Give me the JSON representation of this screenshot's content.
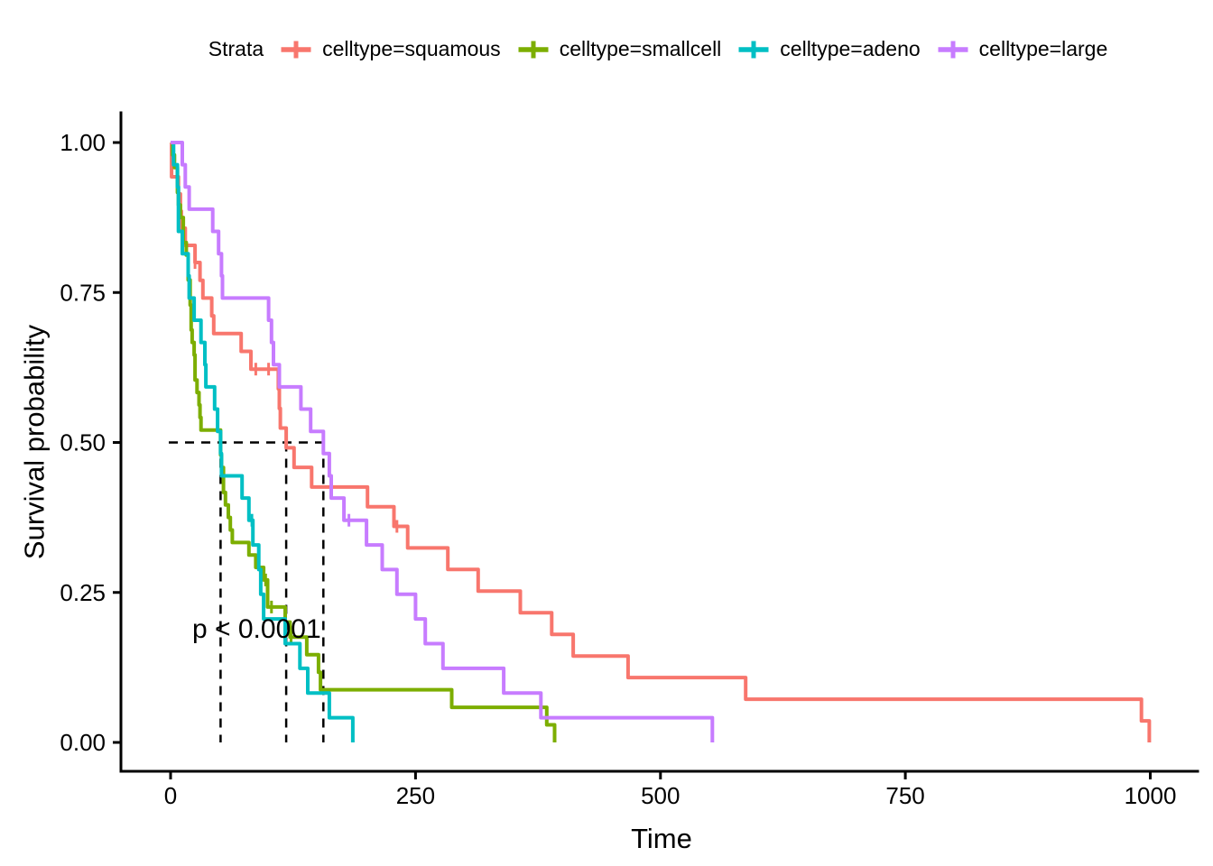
{
  "legend": {
    "title": "Strata",
    "items": [
      {
        "name": "squamous",
        "label": "celltype=squamous",
        "color": "#F8766D"
      },
      {
        "name": "smallcell",
        "label": "celltype=smallcell",
        "color": "#7CAE00"
      },
      {
        "name": "adeno",
        "label": "celltype=adeno",
        "color": "#00BFC4"
      },
      {
        "name": "large",
        "label": "celltype=large",
        "color": "#C77CFF"
      }
    ]
  },
  "axes": {
    "x": {
      "label": "Time",
      "ticks": [
        "0",
        "250",
        "500",
        "750",
        "1000"
      ],
      "range": [
        0,
        1000
      ]
    },
    "y": {
      "label": "Survival probability",
      "ticks": [
        "1.00",
        "0.75",
        "0.50",
        "0.25",
        "0.00"
      ],
      "range": [
        0,
        1
      ]
    }
  },
  "annotations": {
    "pvalue": "p < 0.0001"
  },
  "chart_data": {
    "type": "line",
    "subtype": "kaplan-meier-step",
    "title": "",
    "xlabel": "Time",
    "ylabel": "Survival probability",
    "xlim": [
      0,
      1000
    ],
    "ylim": [
      0,
      1
    ],
    "grid": false,
    "legend_position": "top",
    "median_line_y": 0.5,
    "median_survival_times": {
      "squamous": 118,
      "smallcell": 51,
      "adeno": 51,
      "large": 156
    },
    "series": [
      {
        "name": "squamous",
        "label": "celltype=squamous",
        "color": "#F8766D",
        "steps": [
          [
            1,
            0.9429
          ],
          [
            8,
            0.9143
          ],
          [
            10,
            0.8857
          ],
          [
            11,
            0.8571
          ],
          [
            15,
            0.8286
          ],
          [
            25,
            0.8
          ],
          [
            30,
            0.7704
          ],
          [
            33,
            0.7407
          ],
          [
            42,
            0.7111
          ],
          [
            44,
            0.6815
          ],
          [
            72,
            0.6519
          ],
          [
            82,
            0.6222
          ],
          [
            110,
            0.5895
          ],
          [
            111,
            0.5567
          ],
          [
            112,
            0.524
          ],
          [
            118,
            0.4912
          ],
          [
            126,
            0.4585
          ],
          [
            144,
            0.4257
          ],
          [
            201,
            0.393
          ],
          [
            228,
            0.3602
          ],
          [
            242,
            0.3242
          ],
          [
            283,
            0.2882
          ],
          [
            314,
            0.2522
          ],
          [
            357,
            0.2161
          ],
          [
            389,
            0.1801
          ],
          [
            411,
            0.1441
          ],
          [
            467,
            0.1081
          ],
          [
            587,
            0.072
          ],
          [
            991,
            0.036
          ],
          [
            999,
            0
          ]
        ],
        "censored": [
          [
            25,
            0.8
          ],
          [
            87,
            0.6222
          ],
          [
            100,
            0.6222
          ],
          [
            231,
            0.3602
          ]
        ]
      },
      {
        "name": "smallcell",
        "label": "celltype=smallcell",
        "color": "#7CAE00",
        "steps": [
          [
            2,
            0.9792
          ],
          [
            4,
            0.9583
          ],
          [
            7,
            0.9167
          ],
          [
            8,
            0.8958
          ],
          [
            10,
            0.875
          ],
          [
            13,
            0.8333
          ],
          [
            16,
            0.8125
          ],
          [
            18,
            0.7708
          ],
          [
            20,
            0.7292
          ],
          [
            21,
            0.6875
          ],
          [
            22,
            0.6667
          ],
          [
            24,
            0.6458
          ],
          [
            25,
            0.6042
          ],
          [
            27,
            0.5833
          ],
          [
            29,
            0.5625
          ],
          [
            30,
            0.5417
          ],
          [
            31,
            0.5208
          ],
          [
            51,
            0.4792
          ],
          [
            52,
            0.4583
          ],
          [
            54,
            0.4167
          ],
          [
            56,
            0.3958
          ],
          [
            59,
            0.375
          ],
          [
            61,
            0.3542
          ],
          [
            63,
            0.3333
          ],
          [
            80,
            0.3125
          ],
          [
            87,
            0.2917
          ],
          [
            95,
            0.2708
          ],
          [
            99,
            0.2257
          ],
          [
            117,
            0.2006
          ],
          [
            122,
            0.1755
          ],
          [
            139,
            0.1463
          ],
          [
            151,
            0.117
          ],
          [
            153,
            0.0878
          ],
          [
            287,
            0.0585
          ],
          [
            384,
            0.0293
          ],
          [
            392,
            0
          ]
        ],
        "censored": [
          [
            97,
            0.2708
          ],
          [
            103,
            0.2257
          ],
          [
            123,
            0.1755
          ]
        ]
      },
      {
        "name": "adeno",
        "label": "celltype=adeno",
        "color": "#00BFC4",
        "steps": [
          [
            3,
            0.963
          ],
          [
            7,
            0.9259
          ],
          [
            8,
            0.8519
          ],
          [
            12,
            0.8148
          ],
          [
            18,
            0.7778
          ],
          [
            19,
            0.7407
          ],
          [
            24,
            0.7037
          ],
          [
            31,
            0.6667
          ],
          [
            35,
            0.6296
          ],
          [
            36,
            0.5926
          ],
          [
            45,
            0.5556
          ],
          [
            48,
            0.5185
          ],
          [
            51,
            0.4815
          ],
          [
            52,
            0.4444
          ],
          [
            73,
            0.4074
          ],
          [
            80,
            0.3704
          ],
          [
            84,
            0.3292
          ],
          [
            90,
            0.2881
          ],
          [
            92,
            0.2469
          ],
          [
            95,
            0.2058
          ],
          [
            117,
            0.1646
          ],
          [
            132,
            0.1235
          ],
          [
            140,
            0.0823
          ],
          [
            162,
            0.0412
          ],
          [
            186,
            0
          ]
        ],
        "censored": [
          [
            83,
            0.3704
          ]
        ]
      },
      {
        "name": "large",
        "label": "celltype=large",
        "color": "#C77CFF",
        "steps": [
          [
            12,
            0.963
          ],
          [
            15,
            0.9259
          ],
          [
            19,
            0.8889
          ],
          [
            43,
            0.8519
          ],
          [
            49,
            0.8148
          ],
          [
            52,
            0.7778
          ],
          [
            53,
            0.7407
          ],
          [
            100,
            0.7037
          ],
          [
            103,
            0.6667
          ],
          [
            105,
            0.6296
          ],
          [
            111,
            0.5926
          ],
          [
            133,
            0.5556
          ],
          [
            143,
            0.5185
          ],
          [
            156,
            0.4815
          ],
          [
            162,
            0.4444
          ],
          [
            164,
            0.4074
          ],
          [
            177,
            0.3704
          ],
          [
            200,
            0.3292
          ],
          [
            216,
            0.2881
          ],
          [
            231,
            0.2469
          ],
          [
            250,
            0.2058
          ],
          [
            260,
            0.1646
          ],
          [
            278,
            0.1235
          ],
          [
            340,
            0.0823
          ],
          [
            378,
            0.0412
          ],
          [
            553,
            0
          ]
        ],
        "censored": [
          [
            182,
            0.3704
          ]
        ]
      }
    ]
  }
}
